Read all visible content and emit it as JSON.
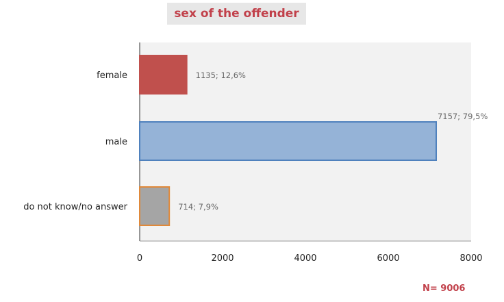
{
  "chart_data": {
    "type": "bar",
    "orientation": "horizontal",
    "title": "sex of the offender",
    "categories": [
      "female",
      "male",
      "do not know/no answer"
    ],
    "values": [
      1135,
      7157,
      714
    ],
    "data_labels": [
      "1135; 12,6%",
      "7157; 79,5%",
      "714; 7,9%"
    ],
    "xlim": [
      0,
      8000
    ],
    "x_ticks": [
      0,
      2000,
      4000,
      6000,
      8000
    ],
    "x_tick_labels": [
      "0",
      "2000",
      "4000",
      "6000",
      "8000"
    ],
    "grid": false,
    "legend": "none",
    "note": "N= 9006",
    "colors": {
      "bars": [
        "#c0504d",
        "#95b3d7",
        "#a5a5a5"
      ],
      "bar_borders": [
        "#c0504d",
        "#4f81bd",
        "#e0893a"
      ],
      "plot_background": "#f2f2f2",
      "title": "#c1404a",
      "note": "#c1404a"
    }
  }
}
